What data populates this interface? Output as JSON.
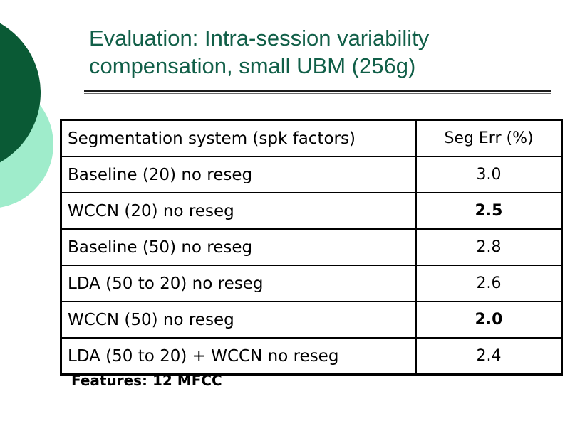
{
  "slide": {
    "title_lines": [
      "Evaluation: Intra-session variability",
      "compensation, small UBM (256g)"
    ]
  },
  "table": {
    "headers": [
      "Segmentation system (spk factors)",
      "Seg Err (%)"
    ],
    "rows": [
      {
        "system": "Baseline (20) no reseg",
        "seg_err": "3.0",
        "bold": false
      },
      {
        "system": "WCCN (20) no reseg",
        "seg_err": "2.5",
        "bold": true
      },
      {
        "system": "Baseline (50) no reseg",
        "seg_err": "2.8",
        "bold": false
      },
      {
        "system": "LDA (50 to 20) no reseg",
        "seg_err": "2.6",
        "bold": false
      },
      {
        "system": "WCCN (50) no reseg",
        "seg_err": "2.0",
        "bold": true
      },
      {
        "system": "LDA (50 to 20) + WCCN no reseg",
        "seg_err": "2.4",
        "bold": false
      }
    ]
  },
  "footer": {
    "features_note": "Features: 12 MFCC"
  },
  "colors": {
    "title_green": "#115f48",
    "circle_dark": "#0a5a35",
    "circle_light": "#9feccb",
    "table_border": "#000000"
  }
}
